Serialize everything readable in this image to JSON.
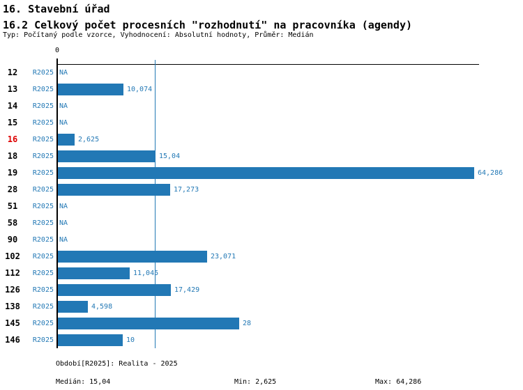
{
  "header": {
    "title1": "16. Stavební úřad",
    "title2": "16.2 Celkový počet procesních \"rozhodnutí\" na pracovníka (agendy)",
    "subtitle": "Typ: Počítaný podle vzorce, Vyhodnocení: Absolutní hodnoty, Průměr: Medián"
  },
  "chart_data": {
    "type": "bar",
    "orientation": "horizontal",
    "title": "16.2 Celkový počet procesních \"rozhodnutí\" na pracovníka (agendy)",
    "axis_zero_label": "0",
    "xlim": [
      0,
      65
    ],
    "grid": false,
    "median_value": 15.04,
    "series_name": "R2025",
    "rows": [
      {
        "id": "12",
        "period": "R2025",
        "value": null,
        "label": "NA",
        "highlight": false
      },
      {
        "id": "13",
        "period": "R2025",
        "value": 10.074,
        "label": "10,074",
        "highlight": false
      },
      {
        "id": "14",
        "period": "R2025",
        "value": null,
        "label": "NA",
        "highlight": false
      },
      {
        "id": "15",
        "period": "R2025",
        "value": null,
        "label": "NA",
        "highlight": false
      },
      {
        "id": "16",
        "period": "R2025",
        "value": 2.625,
        "label": "2,625",
        "highlight": true
      },
      {
        "id": "18",
        "period": "R2025",
        "value": 15.04,
        "label": "15,04",
        "highlight": false
      },
      {
        "id": "19",
        "period": "R2025",
        "value": 64.286,
        "label": "64,286",
        "highlight": false
      },
      {
        "id": "28",
        "period": "R2025",
        "value": 17.273,
        "label": "17,273",
        "highlight": false
      },
      {
        "id": "51",
        "period": "R2025",
        "value": null,
        "label": "NA",
        "highlight": false
      },
      {
        "id": "58",
        "period": "R2025",
        "value": null,
        "label": "NA",
        "highlight": false
      },
      {
        "id": "90",
        "period": "R2025",
        "value": null,
        "label": "NA",
        "highlight": false
      },
      {
        "id": "102",
        "period": "R2025",
        "value": 23.071,
        "label": "23,071",
        "highlight": false
      },
      {
        "id": "112",
        "period": "R2025",
        "value": 11.045,
        "label": "11,045",
        "highlight": false
      },
      {
        "id": "126",
        "period": "R2025",
        "value": 17.429,
        "label": "17,429",
        "highlight": false
      },
      {
        "id": "138",
        "period": "R2025",
        "value": 4.598,
        "label": "4,598",
        "highlight": false
      },
      {
        "id": "145",
        "period": "R2025",
        "value": 28,
        "label": "28",
        "highlight": false
      },
      {
        "id": "146",
        "period": "R2025",
        "value": 10,
        "label": "10",
        "highlight": false
      }
    ],
    "footer": {
      "period_line": "Období[R2025]: Realita - 2025",
      "median_label": "Medián: 15,04",
      "min_label": "Min: 2,625",
      "max_label": "Max: 64,286"
    },
    "colors": {
      "bar_blue": "#2278b5",
      "text_blue": "#2278b5",
      "highlight_red": "#dd0000",
      "axis_black": "#000000"
    }
  }
}
